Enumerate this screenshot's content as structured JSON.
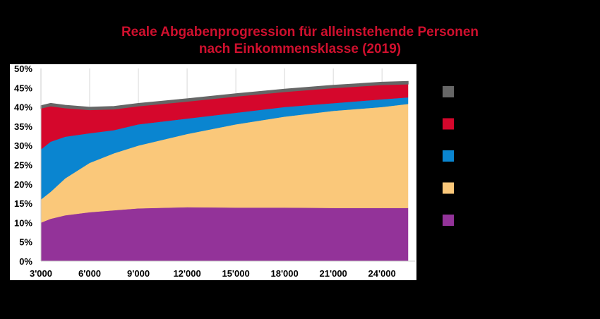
{
  "chart_data": {
    "type": "area",
    "stacked": true,
    "title": [
      "Reale Abgabenprogression für alleinstehende Personen",
      "nach Einkommensklasse (2019)"
    ],
    "xlabel": "",
    "ylabel": "",
    "x": [
      3000,
      3600,
      4500,
      6000,
      7500,
      9000,
      12000,
      15000,
      18000,
      21000,
      24000,
      25600
    ],
    "xlim": [
      3000,
      25600
    ],
    "ylim": [
      0,
      50
    ],
    "x_ticks": [
      3000,
      6000,
      9000,
      12000,
      15000,
      18000,
      21000,
      24000
    ],
    "x_tick_labels": [
      "3'000",
      "6'000",
      "9'000",
      "12'000",
      "15'000",
      "18'000",
      "21'000",
      "24'000"
    ],
    "y_ticks": [
      0,
      5,
      10,
      15,
      20,
      25,
      30,
      35,
      40,
      45,
      50
    ],
    "y_tick_labels": [
      "0%",
      "5%",
      "10%",
      "15%",
      "20%",
      "25%",
      "30%",
      "35%",
      "40%",
      "45%",
      "50%"
    ],
    "grid": "vertical",
    "legend_position": "right",
    "series": [
      {
        "name": "",
        "color": "#933399",
        "values": [
          10,
          11,
          11.9,
          12.7,
          13.2,
          13.7,
          14,
          13.9,
          13.9,
          13.8,
          13.8,
          13.8
        ]
      },
      {
        "name": "",
        "color": "#fac87a",
        "values": [
          6,
          7,
          9.6,
          12.8,
          14.8,
          16.3,
          19,
          21.6,
          23.6,
          25.2,
          26.2,
          27
        ]
      },
      {
        "name": "",
        "color": "#0a85d0",
        "values": [
          13,
          13,
          10.8,
          7.7,
          6,
          5.5,
          4,
          3,
          2.5,
          2,
          2,
          1.7
        ]
      },
      {
        "name": "",
        "color": "#d5072c",
        "values": [
          10.7,
          9.3,
          7.5,
          6.1,
          5.5,
          4.8,
          4.5,
          4.3,
          4,
          4,
          3.8,
          3.5
        ]
      },
      {
        "name": "",
        "color": "#666666",
        "values": [
          0.6,
          0.6,
          0.6,
          0.6,
          0.6,
          0.6,
          0.6,
          0.6,
          0.6,
          0.6,
          0.6,
          0.6
        ]
      }
    ]
  }
}
